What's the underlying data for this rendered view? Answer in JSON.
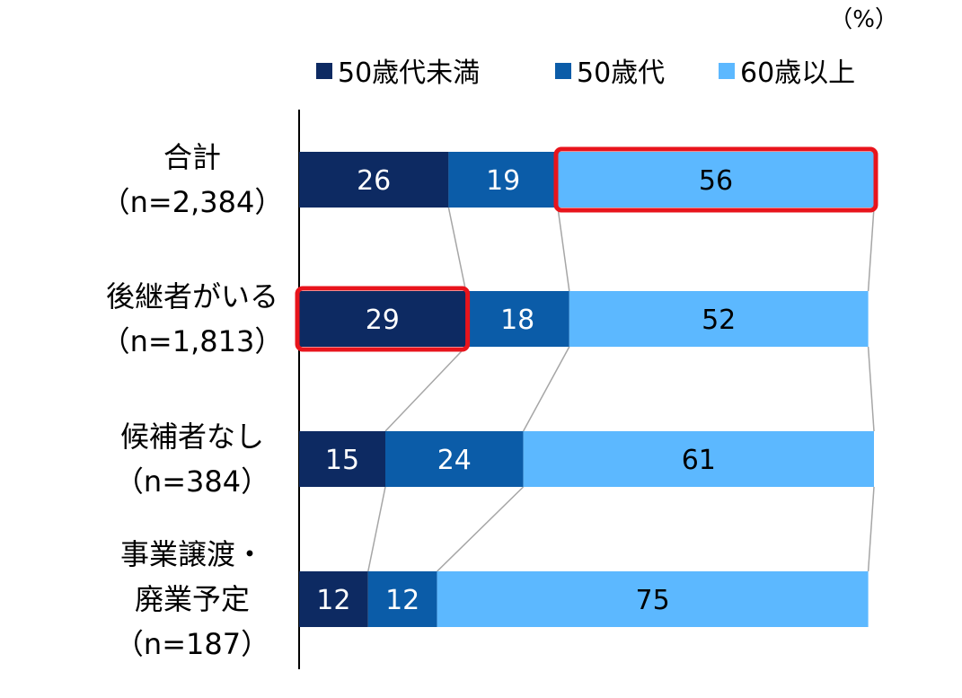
{
  "chart_data": {
    "type": "bar",
    "orientation": "horizontal",
    "stacked": true,
    "unit_label": "（%）",
    "xlim": [
      0,
      100
    ],
    "grid": false,
    "legend_position": "top",
    "categories": [
      {
        "lines": [
          "合計",
          "（n=2,384）"
        ]
      },
      {
        "lines": [
          "後継者がいる",
          "（n=1,813）"
        ]
      },
      {
        "lines": [
          "候補者なし",
          "（n=384）"
        ]
      },
      {
        "lines": [
          "事業譲渡・",
          "廃業予定",
          "（n=187）"
        ]
      }
    ],
    "series": [
      {
        "name": "50歳代未満",
        "color": "#0d2a62",
        "label_color": "#ffffff",
        "values": [
          26,
          29,
          15,
          12
        ]
      },
      {
        "name": "50歳代",
        "color": "#0b5ca8",
        "label_color": "#ffffff",
        "values": [
          19,
          18,
          24,
          12
        ]
      },
      {
        "name": "60歳以上",
        "color": "#5cb8ff",
        "label_color": "#000000",
        "values": [
          56,
          52,
          61,
          75
        ]
      }
    ],
    "highlights": [
      {
        "category_index": 0,
        "series_index": 2,
        "color": "#e8141c"
      },
      {
        "category_index": 1,
        "series_index": 0,
        "color": "#e8141c"
      }
    ]
  }
}
